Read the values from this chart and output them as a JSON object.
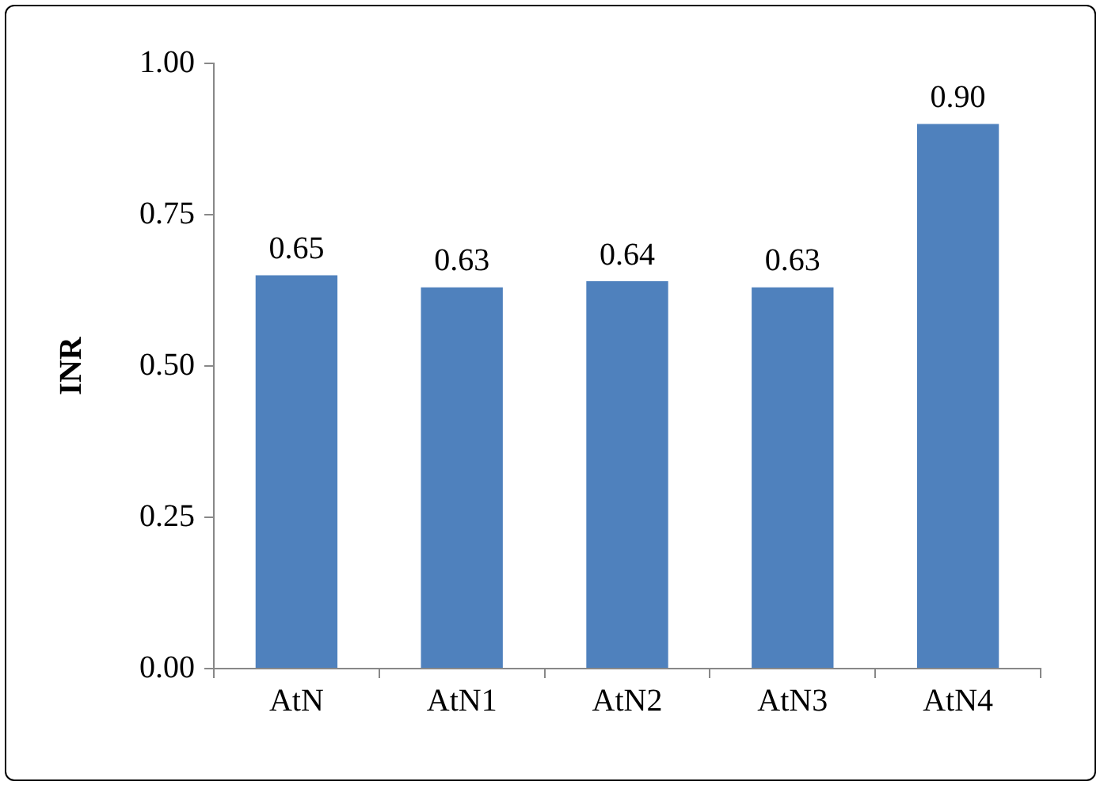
{
  "chart_data": {
    "type": "bar",
    "ylabel": "INR",
    "categories": [
      "AtN",
      "AtN1",
      "AtN2",
      "AtN3",
      "AtN4"
    ],
    "values": [
      0.65,
      0.63,
      0.64,
      0.63,
      0.9
    ],
    "color": "#4f81bd",
    "ylim": [
      0,
      1
    ],
    "yticks": [
      {
        "value": 0,
        "label": "0.00"
      },
      {
        "value": 0.25,
        "label": "0.25"
      },
      {
        "value": 0.5,
        "label": "0.50"
      },
      {
        "value": 0.75,
        "label": "0.75"
      },
      {
        "value": 1,
        "label": "1.00"
      }
    ],
    "value_labels": [
      "0.65",
      "0.63",
      "0.64",
      "0.63",
      "0.90"
    ],
    "grid": false,
    "legend": false
  }
}
